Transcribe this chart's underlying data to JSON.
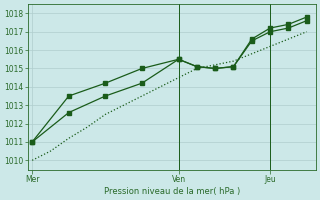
{
  "xlabel": "Pression niveau de la mer( hPa )",
  "bg_color": "#cce8e8",
  "grid_color": "#b0cece",
  "line_color": "#1a5c1a",
  "spine_color": "#2a6a2a",
  "ylim": [
    1009.5,
    1018.5
  ],
  "yticks": [
    1010,
    1011,
    1012,
    1013,
    1014,
    1015,
    1016,
    1017,
    1018
  ],
  "xtick_labels": [
    "Mer",
    "Ven",
    "Jeu"
  ],
  "xtick_positions": [
    0,
    16,
    26
  ],
  "vline_positions": [
    16,
    26
  ],
  "xlim": [
    -0.5,
    31
  ],
  "dot_line_x": [
    0,
    2,
    4,
    6,
    8,
    10,
    12,
    14,
    16,
    18,
    20,
    22,
    24,
    26,
    28,
    30
  ],
  "dot_line_y": [
    1010.0,
    1010.5,
    1011.2,
    1011.8,
    1012.5,
    1013.0,
    1013.5,
    1014.0,
    1014.5,
    1015.0,
    1015.2,
    1015.4,
    1015.8,
    1016.2,
    1016.6,
    1017.0
  ],
  "solid1_x": [
    0,
    4,
    8,
    12,
    16,
    18,
    20,
    22,
    24,
    26,
    28,
    30
  ],
  "solid1_y": [
    1011.0,
    1012.6,
    1013.5,
    1014.2,
    1015.5,
    1015.1,
    1015.0,
    1015.1,
    1016.5,
    1017.0,
    1017.2,
    1017.6
  ],
  "solid2_x": [
    0,
    4,
    8,
    12,
    16,
    18,
    20,
    22,
    24,
    26,
    28,
    30
  ],
  "solid2_y": [
    1011.0,
    1013.5,
    1014.2,
    1015.0,
    1015.5,
    1015.1,
    1015.0,
    1015.1,
    1016.6,
    1017.2,
    1017.4,
    1017.8
  ]
}
